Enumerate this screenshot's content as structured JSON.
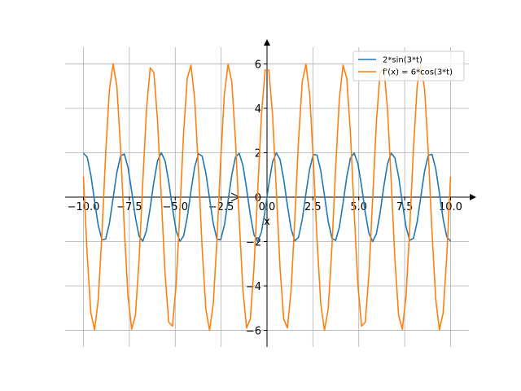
{
  "chart_data": {
    "type": "line",
    "title": "",
    "xlabel": "x",
    "ylabel": "",
    "xlim": [
      -11,
      11
    ],
    "ylim": [
      -6.75,
      6.75
    ],
    "grid": true,
    "legend_position": "top-right",
    "x_ticks": [
      -10.0,
      -7.5,
      -5.0,
      -2.5,
      0.0,
      2.5,
      5.0,
      7.5,
      10.0
    ],
    "x_tick_labels": [
      "−10.0",
      "−7.5",
      "−5.0",
      "−2.5",
      "0.0",
      "2.5",
      "5.0",
      "7.5",
      "10.0"
    ],
    "y_ticks": [
      -6,
      -4,
      -2,
      0,
      2,
      4,
      6
    ],
    "y_tick_labels": [
      "−6",
      "−4",
      "−2",
      "0",
      "2",
      "4",
      "6"
    ],
    "x_range": [
      -10,
      10
    ],
    "n_points": 100,
    "series": [
      {
        "name": "2*sin(3*t)",
        "expression": "2*sin(3*t)",
        "amplitude": 2,
        "frequency": 3,
        "func": "sin",
        "color": "#1f77b4"
      },
      {
        "name": "f'(x) = 6*cos(3*t)",
        "expression": "6*cos(3*t)",
        "amplitude": 6,
        "frequency": 3,
        "func": "cos",
        "color": "#ff7f0e"
      }
    ]
  }
}
